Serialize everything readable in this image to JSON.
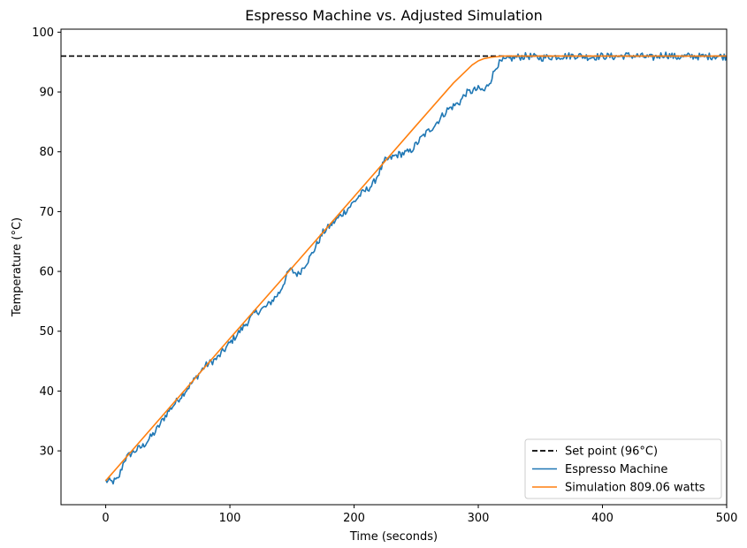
{
  "chart_data": {
    "type": "line",
    "title": "Espresso Machine vs. Adjusted Simulation",
    "xlabel": "Time (seconds)",
    "ylabel": "Temperature (°C)",
    "xlim": [
      -36,
      500
    ],
    "ylim": [
      21,
      100.5
    ],
    "xticks": [
      0,
      100,
      200,
      300,
      400,
      500
    ],
    "yticks": [
      30,
      40,
      50,
      60,
      70,
      80,
      90,
      100
    ],
    "grid": false,
    "legend_position": "bottom-right",
    "colors": {
      "setpoint": "#000000",
      "machine": "#1f77b4",
      "simulation": "#ff7f0e"
    },
    "series": [
      {
        "name": "Set point (96°C)",
        "style": "dashed",
        "x": [
          -36,
          500
        ],
        "y": [
          96,
          96
        ]
      },
      {
        "name": "Espresso Machine",
        "style": "solid-noisy",
        "x": [
          0,
          5,
          10,
          15,
          20,
          25,
          30,
          40,
          50,
          60,
          70,
          80,
          90,
          100,
          110,
          120,
          130,
          140,
          148,
          155,
          165,
          175,
          185,
          195,
          205,
          215,
          225,
          235,
          245,
          255,
          265,
          275,
          285,
          290,
          300,
          305,
          310,
          315,
          320,
          325,
          330,
          340,
          350,
          360,
          370,
          380,
          390,
          400,
          410,
          420,
          430,
          440,
          450,
          460,
          470,
          480,
          490,
          500
        ],
        "y": [
          25.0,
          24.8,
          25.2,
          28.5,
          29.5,
          30.2,
          30.8,
          33.2,
          36.5,
          39.0,
          41.5,
          44.2,
          45.5,
          48.0,
          50.5,
          53.0,
          54.2,
          56.5,
          60.3,
          59.5,
          62.5,
          66.5,
          68.5,
          70.5,
          72.8,
          74.5,
          78.5,
          79.5,
          80.0,
          82.5,
          84.5,
          87.0,
          88.3,
          89.8,
          90.5,
          90.2,
          92.0,
          94.5,
          95.2,
          95.5,
          95.8,
          96.0,
          95.7,
          95.9,
          96.0,
          96.1,
          95.8,
          96.0,
          95.9,
          96.1,
          96.0,
          95.7,
          96.3,
          95.8,
          96.0,
          95.9,
          96.0,
          95.9
        ]
      },
      {
        "name": "Simulation 809.06 watts",
        "style": "solid",
        "x": [
          0,
          50,
          100,
          150,
          200,
          250,
          280,
          295,
          300,
          305,
          310,
          315,
          320,
          325,
          330,
          340,
          350,
          400,
          450,
          500
        ],
        "y": [
          25.0,
          36.9,
          48.8,
          60.6,
          72.5,
          84.4,
          91.5,
          94.5,
          95.2,
          95.6,
          95.8,
          95.9,
          96.0,
          96.0,
          96.0,
          96.0,
          96.0,
          96.0,
          96.0,
          96.0
        ]
      }
    ]
  }
}
